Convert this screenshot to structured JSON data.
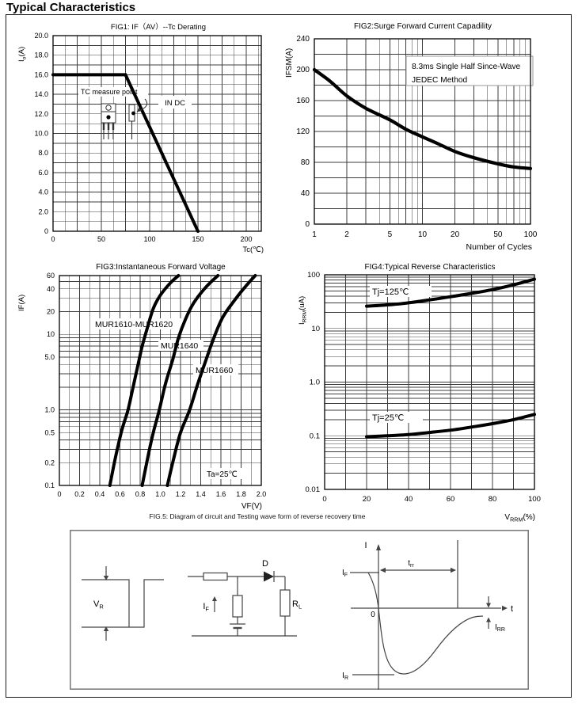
{
  "page": {
    "title": "Typical Characteristics"
  },
  "chart_data": [
    {
      "id": "fig1",
      "type": "line",
      "title": "FIG1: IF（AV）--Tc Derating",
      "x_axis": {
        "scale": "linear",
        "min": 0,
        "max": 215.6,
        "minor_step": 12.5,
        "ticks": [
          0,
          50,
          100,
          150,
          200
        ],
        "tick_labels": [
          "0",
          "50",
          "100",
          "150",
          "200"
        ],
        "label": "Tc(℃)"
      },
      "y_axis": {
        "scale": "linear",
        "min": 0,
        "max": 20,
        "minor_step": 1,
        "ticks": [
          20,
          18,
          16,
          14,
          12,
          10,
          8,
          6,
          4,
          2,
          0
        ],
        "tick_labels": [
          "20.0",
          "18.0",
          "16.0",
          "14.0",
          "12.0",
          "10.0",
          "8.0",
          "6.0",
          "4.0",
          "2.0",
          "0"
        ],
        "label": "Io(A)",
        "label_parts": {
          "pre": "I",
          "sub": "o",
          "post": "(A)"
        }
      },
      "series": [
        {
          "name": "IF(AV) derating",
          "smooth": false,
          "points": [
            [
              0,
              16
            ],
            [
              75,
              16
            ],
            [
              150,
              0
            ]
          ]
        }
      ],
      "annotations": [
        "TC measure point",
        "IN DC"
      ]
    },
    {
      "id": "fig2",
      "type": "line",
      "title": "FIG2:Surge Forward Current Capadility",
      "x_axis": {
        "scale": "log",
        "min": 1,
        "max": 100,
        "ticks": [
          1,
          2,
          5,
          10,
          20,
          50,
          100
        ],
        "tick_labels": [
          "1",
          "2",
          "5",
          "10",
          "20",
          "50",
          "100"
        ],
        "label": "Number of Cycles"
      },
      "y_axis": {
        "scale": "linear",
        "min": 0,
        "max": 240,
        "minor_step": 20,
        "ticks": [
          240,
          200,
          160,
          120,
          80,
          40,
          0
        ],
        "tick_labels": [
          "240",
          "200",
          "160",
          "120",
          "80",
          "40",
          "0"
        ],
        "label": "IFSM(A)"
      },
      "series": [
        {
          "name": "surge forward current",
          "points": [
            [
              1,
              200
            ],
            [
              1.4,
              185
            ],
            [
              2,
              166
            ],
            [
              3,
              150
            ],
            [
              5,
              135
            ],
            [
              7,
              123
            ],
            [
              10,
              113
            ],
            [
              14,
              104
            ],
            [
              20,
              94
            ],
            [
              30,
              86
            ],
            [
              50,
              78
            ],
            [
              70,
              74
            ],
            [
              100,
              72
            ]
          ]
        }
      ],
      "annotations": [
        [
          "8.3ms Single Half Since-Wave",
          "JEDEC Method"
        ]
      ]
    },
    {
      "id": "fig3",
      "type": "line",
      "title": "FIG3:Instantaneous Forward Voltage",
      "x_axis": {
        "scale": "linear",
        "min": 0,
        "max": 2.0,
        "minor_step": 0.1,
        "ticks": [
          0,
          0.2,
          0.4,
          0.6,
          0.8,
          1.0,
          1.2,
          1.4,
          1.6,
          1.8,
          2.0
        ],
        "tick_labels": [
          "0",
          "0.2",
          "0.4",
          "0.6",
          "0.8",
          "1.0",
          "1.2",
          "1.4",
          "1.6",
          "1.8",
          "2.0"
        ],
        "label": "VF(V)"
      },
      "y_axis": {
        "scale": "log",
        "min": 0.1,
        "max": 60,
        "ticks": [
          60,
          40,
          20,
          10,
          5,
          1,
          0.5,
          0.2,
          0.1
        ],
        "tick_labels": [
          "60",
          "40",
          "20",
          "10",
          "5.0",
          "1.0",
          "0.5",
          "0.2",
          "0.1"
        ],
        "label": "IF(A)"
      },
      "series": [
        {
          "name": "MUR1610-MUR1620",
          "points": [
            [
              0.5,
              0.1
            ],
            [
              0.56,
              0.25
            ],
            [
              0.62,
              0.55
            ],
            [
              0.68,
              1.0
            ],
            [
              0.73,
              2.0
            ],
            [
              0.78,
              4
            ],
            [
              0.82,
              7
            ],
            [
              0.87,
              12
            ],
            [
              0.93,
              22
            ],
            [
              1.0,
              33
            ],
            [
              1.1,
              48
            ],
            [
              1.18,
              60
            ]
          ]
        },
        {
          "name": "MUR1640",
          "points": [
            [
              0.82,
              0.1
            ],
            [
              0.88,
              0.25
            ],
            [
              0.93,
              0.5
            ],
            [
              0.99,
              1.0
            ],
            [
              1.05,
              2.2
            ],
            [
              1.12,
              4.5
            ],
            [
              1.18,
              9
            ],
            [
              1.25,
              16
            ],
            [
              1.33,
              26
            ],
            [
              1.45,
              42
            ],
            [
              1.57,
              60
            ]
          ]
        },
        {
          "name": "MUR1660",
          "points": [
            [
              1.07,
              0.1
            ],
            [
              1.13,
              0.22
            ],
            [
              1.2,
              0.5
            ],
            [
              1.29,
              1.0
            ],
            [
              1.37,
              2.2
            ],
            [
              1.45,
              4.5
            ],
            [
              1.53,
              9
            ],
            [
              1.62,
              17
            ],
            [
              1.75,
              30
            ],
            [
              1.85,
              44
            ],
            [
              1.94,
              60
            ]
          ]
        }
      ],
      "annotations": [
        "MUR1610-MUR1620",
        "MUR1640",
        "MUR1660",
        "Ta=25℃"
      ]
    },
    {
      "id": "fig4",
      "type": "line",
      "title": "FIG4:Typical Reverse Characteristics",
      "x_axis": {
        "scale": "linear",
        "min": 0,
        "max": 100,
        "minor_step": 10,
        "ticks": [
          0,
          20,
          40,
          60,
          80,
          100
        ],
        "tick_labels": [
          "0",
          "20",
          "40",
          "60",
          "80",
          "100"
        ],
        "label": "VRRM(%)",
        "label_parts": {
          "pre": "V",
          "sub": "RRM",
          "post": "(%)"
        }
      },
      "y_axis": {
        "scale": "log",
        "min": 0.01,
        "max": 100,
        "ticks": [
          100,
          10,
          1,
          0.1,
          0.01
        ],
        "tick_labels": [
          "100",
          "10",
          "1.0",
          "0.1",
          "0.01"
        ],
        "label": "IRRM(uA)",
        "label_parts": {
          "pre": "I",
          "sub": "RRM",
          "post": "(uA)"
        }
      },
      "series": [
        {
          "name": "Tj=125℃",
          "points": [
            [
              20,
              26
            ],
            [
              30,
              27.5
            ],
            [
              40,
              30
            ],
            [
              50,
              34
            ],
            [
              60,
              39
            ],
            [
              70,
              45
            ],
            [
              80,
              53
            ],
            [
              90,
              65
            ],
            [
              100,
              83
            ]
          ]
        },
        {
          "name": "Tj=25℃",
          "points": [
            [
              20,
              0.096
            ],
            [
              30,
              0.1
            ],
            [
              40,
              0.105
            ],
            [
              50,
              0.115
            ],
            [
              60,
              0.127
            ],
            [
              70,
              0.145
            ],
            [
              80,
              0.168
            ],
            [
              90,
              0.2
            ],
            [
              100,
              0.25
            ]
          ]
        }
      ],
      "annotations": [
        "Tj=125℃",
        "Tj=25℃"
      ]
    }
  ],
  "fig5": {
    "caption": "FIG.5: Diagram of circuit and Testing wave form of reverse recovery time",
    "labels": {
      "vr": {
        "pre": "V",
        "sub": "R"
      },
      "d": "D",
      "i_f": {
        "pre": "I",
        "sub": "F"
      },
      "rl": {
        "pre": "R",
        "sub": "L"
      },
      "i": "I",
      "t": "t",
      "zero": "0",
      "trr": {
        "pre": "t",
        "sub": "rr"
      },
      "if2": {
        "pre": "I",
        "sub": "F"
      },
      "irr": {
        "pre": "I",
        "sub": "RR"
      },
      "ir": {
        "pre": "I",
        "sub": "R"
      }
    }
  },
  "colors": {
    "ink": "#000000",
    "grid": "#3c3c3c",
    "diagram": "#444444",
    "box_border": "#7d7d7d"
  }
}
